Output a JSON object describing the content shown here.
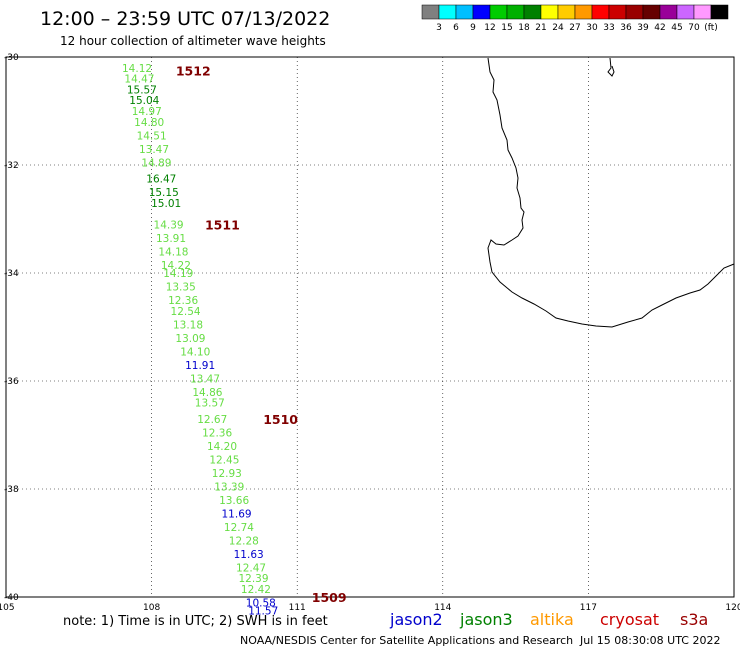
{
  "header": {
    "title": "12:00 – 23:59 UTC 07/13/2022",
    "subtitle": "12 hour collection of altimeter wave heights"
  },
  "legend": {
    "colors": [
      "#808080",
      "#00ffff",
      "#00bfff",
      "#0000ff",
      "#00cc00",
      "#00b000",
      "#008000",
      "#ffff00",
      "#ffcc00",
      "#ff9900",
      "#ff0000",
      "#cc0000",
      "#990000",
      "#660000",
      "#990099",
      "#cc66ff",
      "#ff99ff",
      "#000000"
    ],
    "labels": [
      "3",
      "6",
      "9",
      "12",
      "15",
      "18",
      "21",
      "24",
      "27",
      "30",
      "33",
      "36",
      "39",
      "42",
      "45",
      "70",
      "(ft)"
    ]
  },
  "map": {
    "lon_range": [
      105,
      120
    ],
    "lat_range": [
      -40,
      -30
    ],
    "lat_ticks": [
      "-30",
      "-32",
      "-34",
      "-36",
      "-38",
      "-40"
    ],
    "lon_ticks": [
      "105",
      "108",
      "111",
      "114",
      "117",
      "120"
    ]
  },
  "chart_data": {
    "type": "scatter",
    "observations": [
      {
        "lon": 107.7,
        "lat": -30.2,
        "swh": "14.12",
        "color": "#66dd44"
      },
      {
        "lon": 107.75,
        "lat": -30.4,
        "swh": "14.47",
        "color": "#66dd44"
      },
      {
        "lon": 107.8,
        "lat": -30.6,
        "swh": "15.57",
        "color": "#008000"
      },
      {
        "lon": 107.85,
        "lat": -30.8,
        "swh": "15.04",
        "color": "#008000"
      },
      {
        "lon": 107.9,
        "lat": -31.0,
        "swh": "14.97",
        "color": "#66dd44"
      },
      {
        "lon": 107.95,
        "lat": -31.2,
        "swh": "14.80",
        "color": "#66dd44"
      },
      {
        "lon": 108.0,
        "lat": -31.45,
        "swh": "14.51",
        "color": "#66dd44"
      },
      {
        "lon": 108.05,
        "lat": -31.7,
        "swh": "13.47",
        "color": "#66dd44"
      },
      {
        "lon": 108.1,
        "lat": -31.95,
        "swh": "14.89",
        "color": "#66dd44"
      },
      {
        "lon": 108.2,
        "lat": -32.25,
        "swh": "16.47",
        "color": "#008000"
      },
      {
        "lon": 108.25,
        "lat": -32.5,
        "swh": "15.15",
        "color": "#008000"
      },
      {
        "lon": 108.3,
        "lat": -32.7,
        "swh": "15.01",
        "color": "#008000"
      },
      {
        "lon": 108.35,
        "lat": -33.1,
        "swh": "14.39",
        "color": "#66dd44"
      },
      {
        "lon": 108.4,
        "lat": -33.35,
        "swh": "13.91",
        "color": "#66dd44"
      },
      {
        "lon": 108.45,
        "lat": -33.6,
        "swh": "14.18",
        "color": "#66dd44"
      },
      {
        "lon": 108.5,
        "lat": -33.85,
        "swh": "14.22",
        "color": "#66dd44"
      },
      {
        "lon": 108.55,
        "lat": -34.0,
        "swh": "14.19",
        "color": "#66dd44"
      },
      {
        "lon": 108.6,
        "lat": -34.25,
        "swh": "13.35",
        "color": "#66dd44"
      },
      {
        "lon": 108.65,
        "lat": -34.5,
        "swh": "12.36",
        "color": "#66dd44"
      },
      {
        "lon": 108.7,
        "lat": -34.7,
        "swh": "12.54",
        "color": "#66dd44"
      },
      {
        "lon": 108.75,
        "lat": -34.95,
        "swh": "13.18",
        "color": "#66dd44"
      },
      {
        "lon": 108.8,
        "lat": -35.2,
        "swh": "13.09",
        "color": "#66dd44"
      },
      {
        "lon": 108.9,
        "lat": -35.45,
        "swh": "14.10",
        "color": "#66dd44"
      },
      {
        "lon": 109.0,
        "lat": -35.7,
        "swh": "11.91",
        "color": "#0000cc"
      },
      {
        "lon": 109.1,
        "lat": -35.95,
        "swh": "13.47",
        "color": "#66dd44"
      },
      {
        "lon": 109.15,
        "lat": -36.2,
        "swh": "14.86",
        "color": "#66dd44"
      },
      {
        "lon": 109.2,
        "lat": -36.4,
        "swh": "13.57",
        "color": "#66dd44"
      },
      {
        "lon": 109.25,
        "lat": -36.7,
        "swh": "12.67",
        "color": "#66dd44"
      },
      {
        "lon": 109.35,
        "lat": -36.95,
        "swh": "12.36",
        "color": "#66dd44"
      },
      {
        "lon": 109.45,
        "lat": -37.2,
        "swh": "14.20",
        "color": "#66dd44"
      },
      {
        "lon": 109.5,
        "lat": -37.45,
        "swh": "12.45",
        "color": "#66dd44"
      },
      {
        "lon": 109.55,
        "lat": -37.7,
        "swh": "12.93",
        "color": "#66dd44"
      },
      {
        "lon": 109.6,
        "lat": -37.95,
        "swh": "13.39",
        "color": "#66dd44"
      },
      {
        "lon": 109.7,
        "lat": -38.2,
        "swh": "13.66",
        "color": "#66dd44"
      },
      {
        "lon": 109.75,
        "lat": -38.45,
        "swh": "11.69",
        "color": "#0000cc"
      },
      {
        "lon": 109.8,
        "lat": -38.7,
        "swh": "12.74",
        "color": "#66dd44"
      },
      {
        "lon": 109.9,
        "lat": -38.95,
        "swh": "12.28",
        "color": "#66dd44"
      },
      {
        "lon": 110.0,
        "lat": -39.2,
        "swh": "11.63",
        "color": "#0000cc"
      },
      {
        "lon": 110.05,
        "lat": -39.45,
        "swh": "12.47",
        "color": "#66dd44"
      },
      {
        "lon": 110.1,
        "lat": -39.65,
        "swh": "12.39",
        "color": "#66dd44"
      },
      {
        "lon": 110.15,
        "lat": -39.85,
        "swh": "12.42",
        "color": "#66dd44"
      },
      {
        "lon": 110.25,
        "lat": -40.1,
        "swh": "10.58",
        "color": "#0000cc"
      },
      {
        "lon": 110.3,
        "lat": -40.25,
        "swh": "11.57",
        "color": "#0000cc"
      }
    ],
    "passes": [
      {
        "label": "1512",
        "lon": 108.5,
        "lat": -30.25
      },
      {
        "label": "1511",
        "lon": 109.1,
        "lat": -33.1
      },
      {
        "label": "1510",
        "lon": 110.3,
        "lat": -36.7
      },
      {
        "label": "1509",
        "lon": 111.3,
        "lat": -40.0
      }
    ]
  },
  "footer": {
    "note": "note:  1) Time is in UTC;  2) SWH is in feet",
    "satellites": [
      {
        "name": "jason2",
        "color": "#0000cc"
      },
      {
        "name": "jason3",
        "color": "#008000"
      },
      {
        "name": "altika",
        "color": "#ff9900"
      },
      {
        "name": "cryosat",
        "color": "#cc0000"
      },
      {
        "name": "s3a",
        "color": "#990000"
      }
    ],
    "credit": "NOAA/NESDIS Center for Satellite Applications and Research",
    "timestamp": "Jul 15 08:30:08 UTC 2022"
  }
}
